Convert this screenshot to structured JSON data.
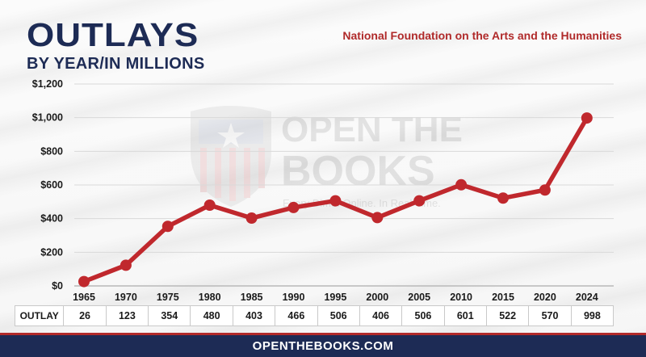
{
  "header": {
    "title": "OUTLAYS",
    "subtitle": "BY YEAR/IN MILLIONS",
    "agency": "National Foundation on the Arts and the Humanities"
  },
  "watermark": {
    "line1": "OPEN THE",
    "line2": "BOOKS",
    "tagline": "Every Dime. Online. In Real Time."
  },
  "table": {
    "row_label": "OUTLAY"
  },
  "footer": {
    "text": "OPENTHEBOOKS.COM"
  },
  "colors": {
    "title": "#1d2b55",
    "accent_red": "#b02a2a",
    "line": "#c0282d",
    "footer_bg": "#1d2b55"
  },
  "chart_data": {
    "type": "line",
    "categories": [
      "1965",
      "1970",
      "1975",
      "1980",
      "1985",
      "1990",
      "1995",
      "2000",
      "2005",
      "2010",
      "2015",
      "2020",
      "2024"
    ],
    "values": [
      26,
      123,
      354,
      480,
      403,
      466,
      506,
      406,
      506,
      601,
      522,
      570,
      998
    ],
    "ylim": [
      0,
      1200
    ],
    "yticks": [
      0,
      200,
      400,
      600,
      800,
      1000,
      1200
    ],
    "ytick_labels": [
      "$0",
      "$200",
      "$400",
      "$600",
      "$800",
      "$1,000",
      "$1,200"
    ],
    "table_values": [
      "26",
      "123",
      "354",
      "480",
      "403",
      "466",
      "506",
      "406",
      "506",
      "601",
      "522",
      "570",
      "998"
    ],
    "grid": true,
    "legend": "none"
  }
}
